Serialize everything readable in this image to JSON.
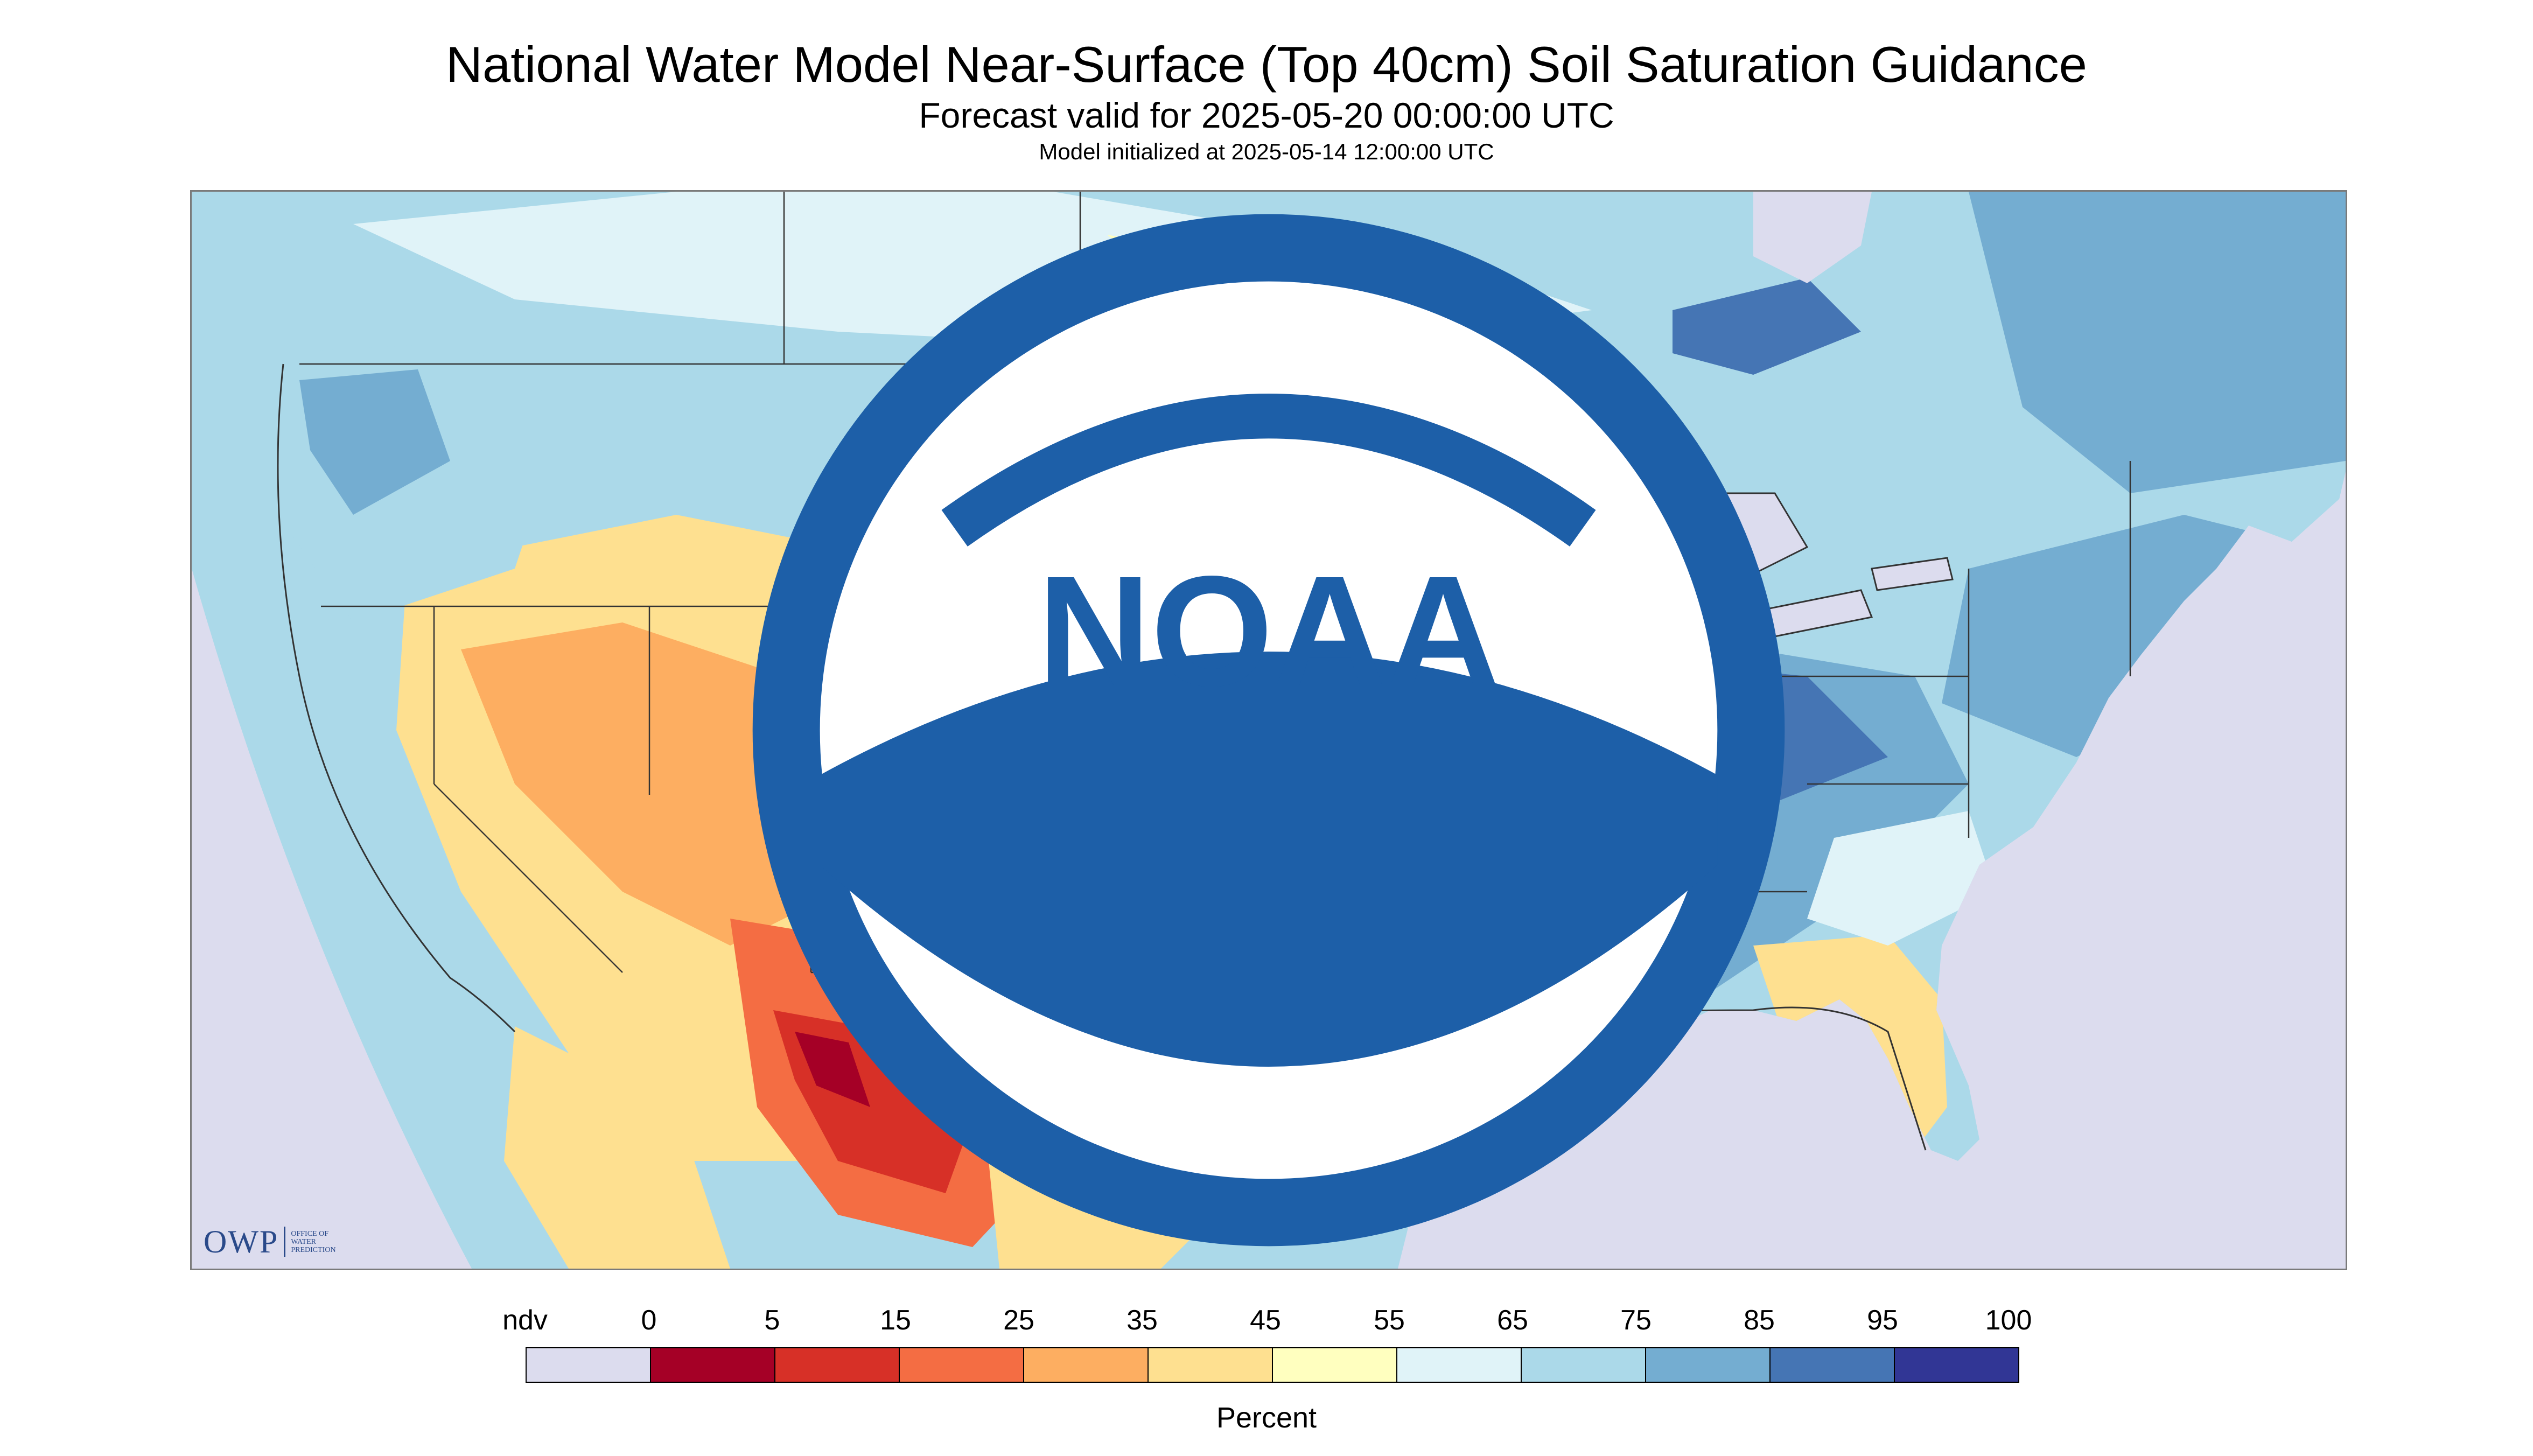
{
  "header": {
    "title": "National Water Model Near-Surface (Top 40cm) Soil Saturation Guidance",
    "subtitle": "Forecast valid for 2025-05-20 00:00:00 UTC",
    "initialized": "Model initialized at 2025-05-14 12:00:00 UTC"
  },
  "logos": {
    "owp_letters": "OWP",
    "owp_line1": "OFFICE OF",
    "owp_line2": "WATER",
    "owp_line3": "PREDICTION",
    "noaa": "NOAA"
  },
  "legend": {
    "units": "Percent",
    "labels": [
      "ndv",
      "0",
      "5",
      "15",
      "25",
      "35",
      "45",
      "55",
      "65",
      "75",
      "85",
      "95",
      "100"
    ],
    "swatch_colors": [
      "#dcdcee",
      "#a50026",
      "#d73027",
      "#f46d43",
      "#fdae61",
      "#fee090",
      "#ffffbf",
      "#e0f3f8",
      "#abd9e9",
      "#74add1",
      "#4575b4",
      "#313695"
    ]
  },
  "map": {
    "colors": {
      "no_data": "#dcdcee",
      "very_dry": "#a50026",
      "dry": "#d73027",
      "moderately_dry": "#f46d43",
      "slightly_dry": "#fdae61",
      "near_normal_dry": "#fee090",
      "mid": "#ffffbf",
      "slightly_wet": "#e0f3f8",
      "wet": "#abd9e9",
      "wetter": "#74add1",
      "very_wet": "#4575b4",
      "saturated": "#313695",
      "water": "#dcdcee",
      "boundary": "#333333"
    }
  }
}
